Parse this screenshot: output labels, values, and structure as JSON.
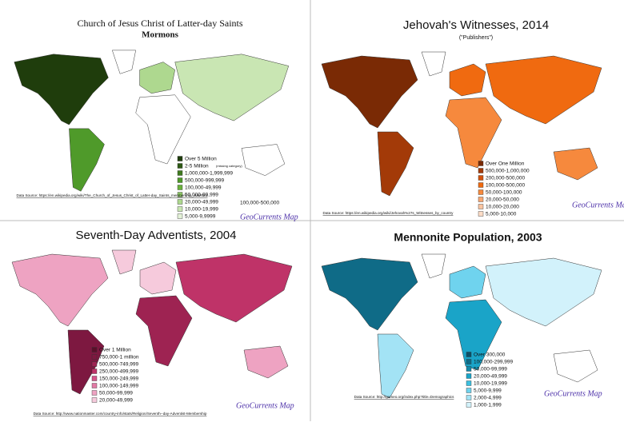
{
  "maps": [
    {
      "title": "Church of Jesus Christ of Latter-day Saints",
      "subtitle": "Mormons",
      "legend": [
        {
          "label": "Over 5 Million",
          "color": "#1f3d0c"
        },
        {
          "label": "2-5 Million",
          "note": "(missing category)",
          "color": "#2d5a14"
        },
        {
          "label": "1,000,000-1,999,999",
          "color": "#3f7a1f"
        },
        {
          "label": "500,000-999,999",
          "color": "#4f9a2a"
        },
        {
          "label": "100,000-49,999",
          "color": "#6ab23c"
        },
        {
          "label": "50,000-99,999",
          "color": "#8cc665"
        },
        {
          "label": "20,000-49,999",
          "color": "#aed88f"
        },
        {
          "label": "10,000-19,999",
          "color": "#c9e6b3"
        },
        {
          "label": "5,000-9,9999",
          "color": "#e3f2d7"
        }
      ],
      "extra": "100,000-500,000",
      "source": "Data Source: https://en.wikipedia.org/wiki/The_Church_of_Jesus_Christ_of_Latter-day_Saints_membership_statistics",
      "brand": "GeoCurrents Map"
    },
    {
      "title": "Jehovah's Witnesses, 2014",
      "subtitle": "(\"Publishers\")",
      "legend": [
        {
          "label": "Over One Million",
          "color": "#7a2a05"
        },
        {
          "label": "500,000-1,000,000",
          "color": "#a33a08"
        },
        {
          "label": "200,000-500,000",
          "color": "#d2520c"
        },
        {
          "label": "100,000-500,000",
          "color": "#f06a10"
        },
        {
          "label": "50,000-100,000",
          "color": "#f6893d"
        },
        {
          "label": "20,000-50,000",
          "color": "#f7a772"
        },
        {
          "label": "10,000-20,000",
          "color": "#f9c4a0"
        },
        {
          "label": "5,000-10,000",
          "color": "#fcdcc6"
        }
      ],
      "source": "Data Source: https://en.wikipedia.org/wiki/Jehovah%27s_Witnesses_by_country",
      "brand": "GeoCurrents Map"
    },
    {
      "title": "Seventh-Day Adventists, 2004",
      "legend": [
        {
          "label": "Over 1 Million",
          "color": "#5a0f2a"
        },
        {
          "label": "750,000-1 million",
          "color": "#7d1840"
        },
        {
          "label": "500,000-749,999",
          "color": "#9e2352"
        },
        {
          "label": "250,000-499,999",
          "color": "#bf3368"
        },
        {
          "label": "150,000-249,999",
          "color": "#d6548a"
        },
        {
          "label": "100,000-149,999",
          "color": "#e27aa5"
        },
        {
          "label": "50,000-99,999",
          "color": "#eea3c2"
        },
        {
          "label": "20,000-49,999",
          "color": "#f6cadc"
        }
      ],
      "source": "Data Source: http://www.nationmaster.com/country-info/stats/Religion/Seventh--day-Adventist-Membership",
      "brand": "GeoCurrents Map"
    },
    {
      "title": "Mennonite Population, 2003",
      "legend": [
        {
          "label": "Over 300,000",
          "color": "#0b4f66"
        },
        {
          "label": "100,000-299,999",
          "color": "#0f6b87"
        },
        {
          "label": "50,000-99,999",
          "color": "#1388a8"
        },
        {
          "label": "20,000-49,999",
          "color": "#1aa4c8"
        },
        {
          "label": "10,000-19,999",
          "color": "#3cc0e0"
        },
        {
          "label": "5,000-9,999",
          "color": "#6fd3ee"
        },
        {
          "label": "2,000-4,999",
          "color": "#a3e3f5"
        },
        {
          "label": "1,000-1,999",
          "color": "#d2f2fb"
        }
      ],
      "source": "Data Source: http://gameo.org/index.php?title=Demographics",
      "brand": "GeoCurrents Map"
    }
  ]
}
